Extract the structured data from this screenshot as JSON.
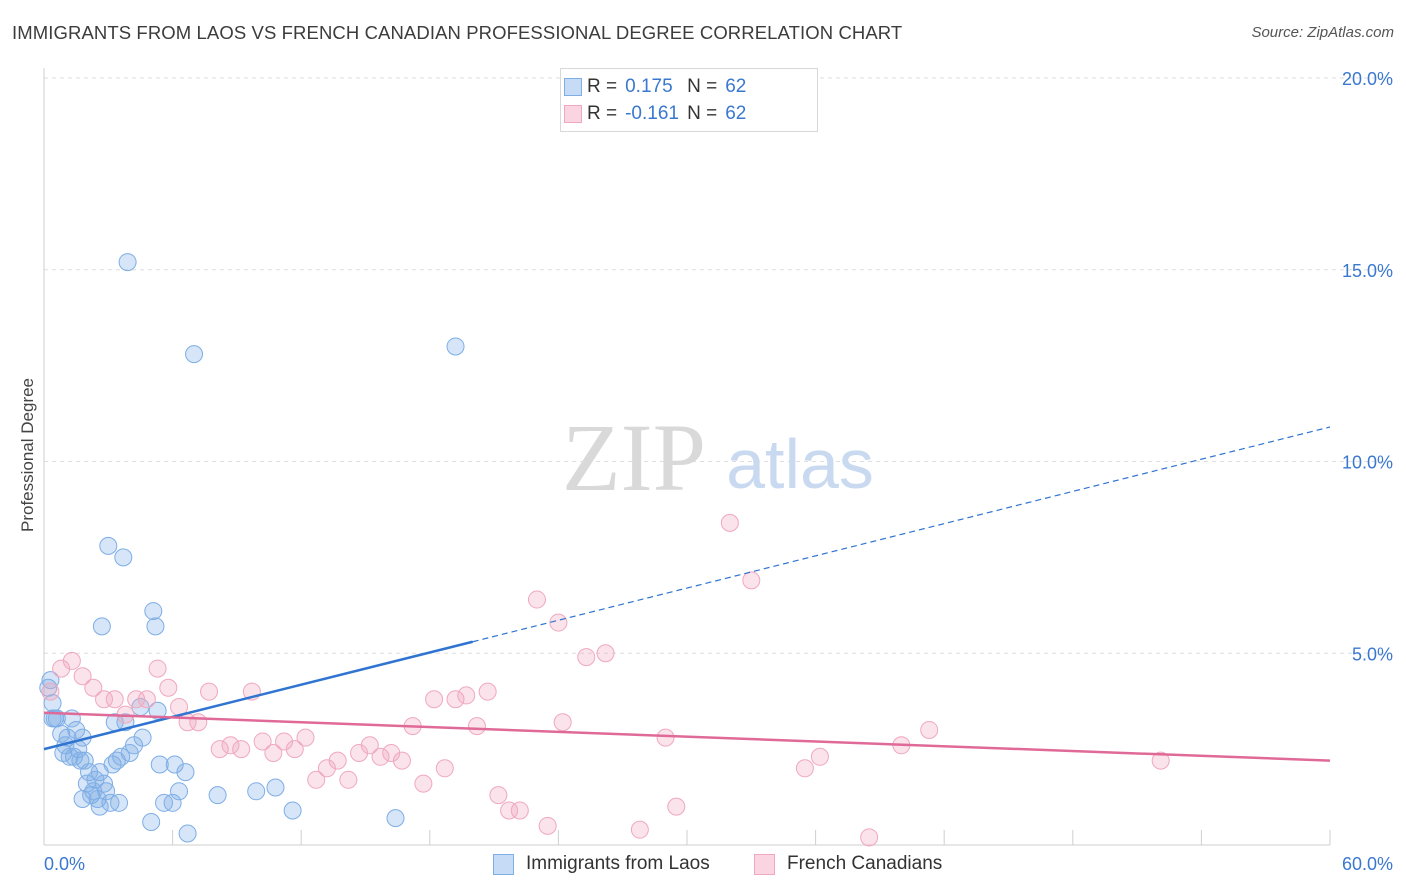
{
  "header": {
    "title": "IMMIGRANTS FROM LAOS VS FRENCH CANADIAN PROFESSIONAL DEGREE CORRELATION CHART",
    "source": "Source: ZipAtlas.com"
  },
  "watermark": {
    "zip": "ZIP",
    "atlas": "atlas"
  },
  "legend": {
    "rows": [
      {
        "r_label": "R =",
        "r_value": "0.175",
        "n_label": "N =",
        "n_value": "62",
        "color": "#7eaee6"
      },
      {
        "r_label": "R =",
        "r_value": "-0.161",
        "n_label": "N =",
        "n_value": "62",
        "color": "#f0a8bf"
      }
    ]
  },
  "bottom_legend": [
    {
      "label": "Immigrants from Laos",
      "color": "#7eaee6"
    },
    {
      "label": "French Canadians",
      "color": "#f0a8bf"
    }
  ],
  "chart_data": {
    "type": "scatter",
    "title": "IMMIGRANTS FROM LAOS VS FRENCH CANADIAN PROFESSIONAL DEGREE CORRELATION CHART",
    "xlabel": "",
    "ylabel": "Professional Degree",
    "xlim": [
      0,
      60
    ],
    "ylim": [
      0,
      20
    ],
    "x_tick_labels": [
      "0.0%",
      "60.0%"
    ],
    "y_ticks": [
      5,
      10,
      15,
      20
    ],
    "y_tick_labels": [
      "5.0%",
      "10.0%",
      "15.0%",
      "20.0%"
    ],
    "grid": true,
    "series": [
      {
        "name": "Immigrants from Laos",
        "color": "#7eaee6",
        "line_color": "#2f74d0",
        "trend": {
          "x0": 0,
          "y0": 2.5,
          "x1": 20,
          "y1": 5.3,
          "dashed_to_x": 60,
          "dashed_to_y": 10.9
        },
        "points": [
          [
            0.2,
            4.1
          ],
          [
            0.3,
            4.3
          ],
          [
            0.4,
            3.7
          ],
          [
            0.5,
            3.3
          ],
          [
            0.6,
            3.3
          ],
          [
            0.8,
            2.9
          ],
          [
            0.9,
            2.4
          ],
          [
            1.0,
            2.6
          ],
          [
            1.1,
            2.8
          ],
          [
            1.2,
            2.3
          ],
          [
            1.3,
            3.3
          ],
          [
            1.4,
            2.3
          ],
          [
            1.5,
            3.0
          ],
          [
            1.6,
            2.5
          ],
          [
            1.7,
            2.2
          ],
          [
            1.8,
            2.8
          ],
          [
            1.8,
            1.2
          ],
          [
            1.9,
            2.2
          ],
          [
            2.0,
            1.6
          ],
          [
            2.1,
            1.9
          ],
          [
            2.2,
            1.3
          ],
          [
            2.3,
            1.4
          ],
          [
            2.4,
            1.7
          ],
          [
            2.5,
            1.2
          ],
          [
            2.6,
            1.9
          ],
          [
            2.6,
            1.0
          ],
          [
            2.7,
            5.7
          ],
          [
            2.8,
            1.6
          ],
          [
            2.9,
            1.4
          ],
          [
            3.0,
            7.8
          ],
          [
            3.1,
            1.1
          ],
          [
            3.2,
            2.1
          ],
          [
            3.3,
            3.2
          ],
          [
            3.4,
            2.2
          ],
          [
            3.5,
            1.1
          ],
          [
            3.6,
            2.3
          ],
          [
            3.7,
            7.5
          ],
          [
            3.8,
            3.2
          ],
          [
            3.9,
            15.2
          ],
          [
            4.0,
            2.4
          ],
          [
            4.2,
            2.6
          ],
          [
            4.5,
            3.6
          ],
          [
            4.6,
            2.8
          ],
          [
            5.0,
            0.6
          ],
          [
            5.1,
            6.1
          ],
          [
            5.2,
            5.7
          ],
          [
            5.3,
            3.5
          ],
          [
            5.4,
            2.1
          ],
          [
            5.6,
            1.1
          ],
          [
            6.0,
            1.1
          ],
          [
            6.1,
            2.1
          ],
          [
            6.3,
            1.4
          ],
          [
            6.6,
            1.9
          ],
          [
            6.7,
            0.3
          ],
          [
            7.0,
            12.8
          ],
          [
            8.1,
            1.3
          ],
          [
            9.9,
            1.4
          ],
          [
            10.8,
            1.5
          ],
          [
            11.6,
            0.9
          ],
          [
            16.4,
            0.7
          ],
          [
            19.2,
            13.0
          ],
          [
            0.4,
            3.3
          ]
        ]
      },
      {
        "name": "French Canadians",
        "color": "#f0a8bf",
        "line_color": "#e06a97",
        "trend": {
          "x0": 0,
          "y0": 3.45,
          "x1": 60,
          "y1": 2.2
        },
        "points": [
          [
            0.3,
            4.0
          ],
          [
            0.8,
            4.6
          ],
          [
            1.3,
            4.8
          ],
          [
            1.8,
            4.4
          ],
          [
            2.3,
            4.1
          ],
          [
            2.8,
            3.8
          ],
          [
            3.3,
            3.8
          ],
          [
            3.8,
            3.4
          ],
          [
            4.3,
            3.8
          ],
          [
            4.8,
            3.8
          ],
          [
            5.3,
            4.6
          ],
          [
            5.8,
            4.1
          ],
          [
            6.3,
            3.6
          ],
          [
            6.7,
            3.2
          ],
          [
            7.2,
            3.2
          ],
          [
            7.7,
            4.0
          ],
          [
            8.2,
            2.5
          ],
          [
            8.7,
            2.6
          ],
          [
            9.2,
            2.5
          ],
          [
            9.7,
            4.0
          ],
          [
            10.2,
            2.7
          ],
          [
            10.7,
            2.4
          ],
          [
            11.2,
            2.7
          ],
          [
            11.7,
            2.5
          ],
          [
            12.2,
            2.8
          ],
          [
            12.7,
            1.7
          ],
          [
            13.2,
            2.0
          ],
          [
            13.7,
            2.2
          ],
          [
            14.2,
            1.7
          ],
          [
            14.7,
            2.4
          ],
          [
            15.2,
            2.6
          ],
          [
            15.7,
            2.3
          ],
          [
            16.2,
            2.4
          ],
          [
            16.7,
            2.2
          ],
          [
            17.2,
            3.1
          ],
          [
            17.7,
            1.6
          ],
          [
            18.2,
            3.8
          ],
          [
            18.7,
            2.0
          ],
          [
            19.2,
            3.8
          ],
          [
            19.7,
            3.9
          ],
          [
            20.2,
            3.1
          ],
          [
            20.7,
            4.0
          ],
          [
            21.2,
            1.3
          ],
          [
            21.7,
            0.9
          ],
          [
            22.2,
            0.9
          ],
          [
            23.0,
            6.4
          ],
          [
            23.5,
            0.5
          ],
          [
            24.0,
            5.8
          ],
          [
            24.2,
            3.2
          ],
          [
            25.3,
            4.9
          ],
          [
            26.2,
            5.0
          ],
          [
            27.8,
            0.4
          ],
          [
            29.0,
            2.8
          ],
          [
            29.5,
            1.0
          ],
          [
            32.0,
            8.4
          ],
          [
            33.0,
            6.9
          ],
          [
            35.5,
            2.0
          ],
          [
            36.2,
            2.3
          ],
          [
            38.5,
            0.2
          ],
          [
            40.0,
            2.6
          ],
          [
            41.3,
            3.0
          ],
          [
            52.1,
            2.2
          ]
        ]
      }
    ]
  }
}
